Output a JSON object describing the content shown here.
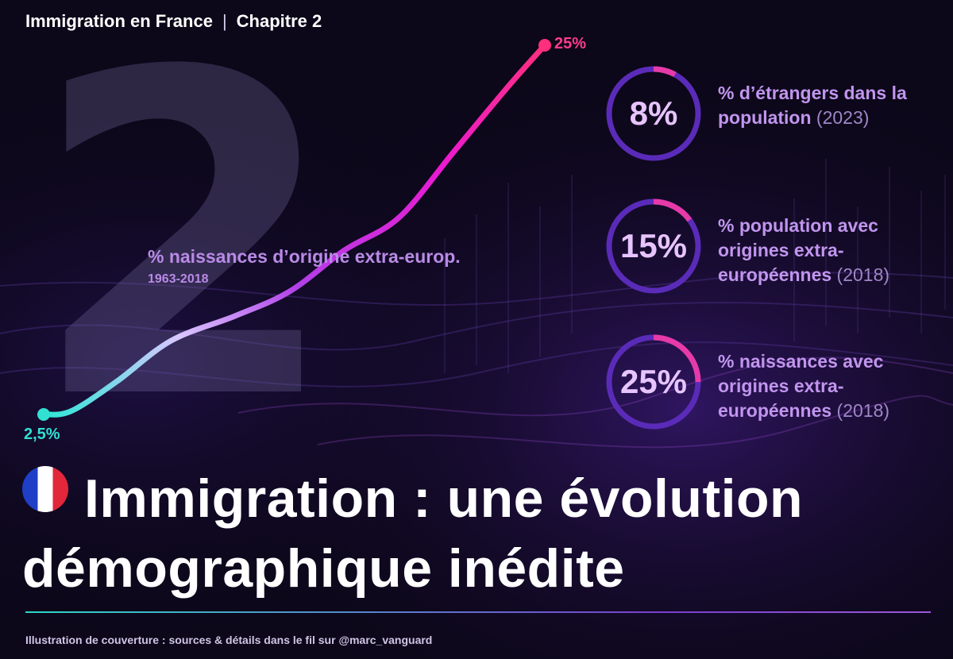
{
  "header": {
    "topic": "Immigration en France",
    "separator": "|",
    "chapter": "Chapitre 2"
  },
  "chapter_number": "2",
  "title": {
    "line1": "Immigration : une évolution",
    "line2": "démographique inédite"
  },
  "footer": {
    "credit": "Illustration de couverture : sources & détails dans le fil sur @marc_vanguard"
  },
  "stats": [
    {
      "value": "8%",
      "fraction": 0.08,
      "label": "% d’étrangers dans la population",
      "year": "(2023)"
    },
    {
      "value": "15%",
      "fraction": 0.15,
      "label": "% population avec origines extra-européennes",
      "year": "(2018)"
    },
    {
      "value": "25%",
      "fraction": 0.25,
      "label": "% naissances avec origines extra-européennes",
      "year": "(2018)"
    }
  ],
  "colors": {
    "cyan": "#32e0d2",
    "pink": "#ff2f86",
    "magenta": "#e51ad8",
    "violet": "#7b3fe0",
    "lilac": "#c195ee"
  },
  "chart_data": {
    "type": "line",
    "title": "% naissances d’origine extra-europ.",
    "subtitle": "1963-2018",
    "x_range": [
      1963,
      2018
    ],
    "start": {
      "x": 1963,
      "y": 2.5,
      "label": "2,5%"
    },
    "end": {
      "x": 2018,
      "y": 25,
      "label": "25%"
    },
    "series": [
      {
        "values": [
          2.5,
          2.7,
          4.5,
          7.0,
          8.5,
          10.0,
          12.5,
          14.5,
          18.5,
          22.5,
          25.0
        ]
      }
    ],
    "x": [
      1963,
      1966,
      1971,
      1977,
      1984,
      1990,
      1996,
      2002,
      2008,
      2014,
      2018
    ]
  }
}
